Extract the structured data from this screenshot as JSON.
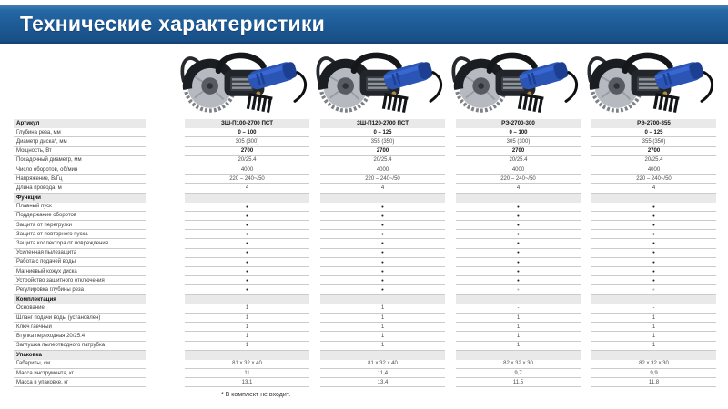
{
  "header": {
    "title": "Технические характеристики"
  },
  "products": [
    {
      "model": "ЗШ-П100-2700 ПСТ"
    },
    {
      "model": "ЗШ-П120-2700 ПСТ"
    },
    {
      "model": "РЭ-2700-300"
    },
    {
      "model": "РЭ-2700-355"
    }
  ],
  "colors": {
    "header_blue": "#1d5a96",
    "section_gray": "#e9e9e9",
    "separator_gray": "#cbcbcb",
    "product_body_blue": "#2a55b4"
  },
  "table": {
    "rows": [
      {
        "label": "Артикул",
        "type": "section",
        "values": [
          "ЗШ-П100-2700 ПСТ",
          "ЗШ-П120-2700 ПСТ",
          "РЭ-2700-300",
          "РЭ-2700-355"
        ]
      },
      {
        "label": "Глубина реза, мм",
        "type": "data",
        "bold_values": true,
        "values": [
          "0 – 100",
          "0 – 125",
          "0 – 100",
          "0 – 125"
        ]
      },
      {
        "label": "Диаметр диска*, мм",
        "type": "data",
        "values": [
          "305 (300)",
          "355 (350)",
          "305 (300)",
          "355 (350)"
        ]
      },
      {
        "label": "Мощность, Вт",
        "type": "data",
        "bold_values": true,
        "values": [
          "2700",
          "2700",
          "2700",
          "2700"
        ]
      },
      {
        "label": "Посадочный диаметр, мм",
        "type": "data",
        "values": [
          "20/25.4",
          "20/25.4",
          "20/25.4",
          "20/25.4"
        ]
      },
      {
        "label": "Число оборотов, об/мин",
        "type": "data",
        "values": [
          "4000",
          "4000",
          "4000",
          "4000"
        ]
      },
      {
        "label": "Напряжение, В/Гц",
        "type": "data",
        "values": [
          "220 – 240~/50",
          "220 – 240~/50",
          "220 – 240~/50",
          "220 – 240~/50"
        ]
      },
      {
        "label": "Длина провода, м",
        "type": "data",
        "values": [
          "4",
          "4",
          "4",
          "4"
        ]
      },
      {
        "label": "Функции",
        "type": "section",
        "values": [
          "",
          "",
          "",
          ""
        ]
      },
      {
        "label": "Плавный пуск",
        "type": "data",
        "values": [
          "•",
          "•",
          "•",
          "•"
        ]
      },
      {
        "label": "Поддержание оборотов",
        "type": "data",
        "values": [
          "•",
          "•",
          "•",
          "•"
        ]
      },
      {
        "label": "Защита от перегрузки",
        "type": "data",
        "values": [
          "•",
          "•",
          "•",
          "•"
        ]
      },
      {
        "label": "Защита от повторного пуска",
        "type": "data",
        "values": [
          "•",
          "•",
          "•",
          "•"
        ]
      },
      {
        "label": "Защита коллектора от повреждения",
        "type": "data",
        "values": [
          "•",
          "•",
          "•",
          "•"
        ]
      },
      {
        "label": "Усиленная пылезащита",
        "type": "data",
        "values": [
          "•",
          "•",
          "•",
          "•"
        ]
      },
      {
        "label": "Работа с подачей воды",
        "type": "data",
        "values": [
          "•",
          "•",
          "•",
          "•"
        ]
      },
      {
        "label": "Магниевый кожух диска",
        "type": "data",
        "values": [
          "•",
          "•",
          "•",
          "•"
        ]
      },
      {
        "label": "Устройство защитного отключения",
        "type": "data",
        "values": [
          "•",
          "•",
          "•",
          "•"
        ]
      },
      {
        "label": "Регулировка глубины реза",
        "type": "data",
        "values": [
          "•",
          "•",
          {
            "text": "•",
            "muted": true
          },
          {
            "text": "•",
            "muted": true
          }
        ]
      },
      {
        "label": "Комплектация",
        "type": "section",
        "values": [
          "",
          "",
          "",
          ""
        ]
      },
      {
        "label": "Основание",
        "type": "data",
        "values": [
          "1",
          "1",
          "-",
          "-"
        ]
      },
      {
        "label": "Шланг подачи воды (установлен)",
        "type": "data",
        "values": [
          "1",
          "1",
          "1",
          "1"
        ]
      },
      {
        "label": "Ключ гаечный",
        "type": "data",
        "values": [
          "1",
          "1",
          "1",
          "1"
        ]
      },
      {
        "label": "Втулка переходная 20/25.4",
        "type": "data",
        "values": [
          "1",
          "1",
          "1",
          "1"
        ]
      },
      {
        "label": "Заглушка пылеотводного патрубка",
        "type": "data",
        "values": [
          "1",
          "1",
          "1",
          "1"
        ]
      },
      {
        "label": "Упаковка",
        "type": "section",
        "values": [
          "",
          "",
          "",
          ""
        ]
      },
      {
        "label": "Габариты, см",
        "type": "data",
        "values": [
          "81 x 32 x 40",
          "81 x 32 x 40",
          "82 x 32 x 30",
          "82 x 32 x 30"
        ]
      },
      {
        "label": "Масса инструмента, кг",
        "type": "data",
        "values": [
          "11",
          "11,4",
          "9,7",
          "9,9"
        ]
      },
      {
        "label": "Масса в упаковке, кг",
        "type": "data",
        "values": [
          "13,1",
          "13,4",
          "11,5",
          "11,8"
        ]
      }
    ]
  },
  "footer": {
    "note": "* В комплект не входит."
  }
}
